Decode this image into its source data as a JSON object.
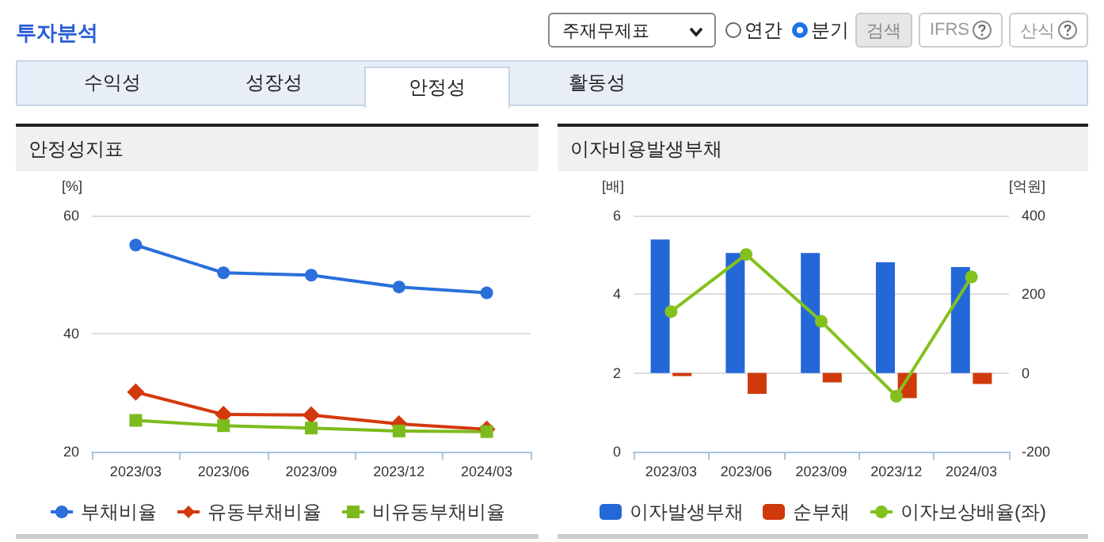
{
  "chart_data": [
    {
      "type": "other",
      "title": "투자분석",
      "annotations": [
        "주재무제표",
        "연간",
        "분기",
        "검색",
        "IFRS",
        "산식",
        "수익성",
        "성장성",
        "안정성",
        "활동성"
      ]
    },
    {
      "type": "line",
      "title": "안정성지표",
      "ylabel": "[%]",
      "categories": [
        "2023/03",
        "2023/06",
        "2023/09",
        "2023/12",
        "2024/03"
      ],
      "series": [
        {
          "name": "부채비율",
          "color": "#2a6fdb",
          "marker": "circle",
          "values": [
            55.0,
            50.3,
            49.9,
            47.9,
            46.9
          ]
        },
        {
          "name": "유동부채비율",
          "color": "#d4380d",
          "marker": "diamond",
          "values": [
            30.1,
            26.3,
            26.2,
            24.7,
            23.8
          ]
        },
        {
          "name": "비유동부채비율",
          "color": "#7cbb1c",
          "marker": "square",
          "values": [
            25.3,
            24.4,
            24.0,
            23.5,
            23.4
          ]
        }
      ],
      "ylim": [
        20,
        60
      ],
      "yticks": [
        20,
        40,
        60
      ],
      "grid": "y",
      "legend": "bottom"
    },
    {
      "type": "bar",
      "title": "이자비용발생부채",
      "ylabel": "[배]",
      "y2label": "[억원]",
      "categories": [
        "2023/03",
        "2023/06",
        "2023/09",
        "2023/12",
        "2024/03"
      ],
      "series": [
        {
          "name": "이자발생부채",
          "color": "#2468d8",
          "axis": "y2",
          "values": [
            339,
            305,
            305,
            281,
            269
          ]
        },
        {
          "name": "순부채",
          "color": "#d03a0a",
          "axis": "y2",
          "values": [
            -8,
            -53,
            -24,
            -64,
            -28
          ]
        },
        {
          "name": "이자보상배율(좌)",
          "type": "line",
          "color": "#84c11e",
          "axis": "y",
          "marker": "circle",
          "values": [
            3.56,
            5.01,
            3.31,
            1.41,
            4.44
          ]
        }
      ],
      "ylim": [
        0,
        6
      ],
      "yticks": [
        0,
        2,
        4,
        6
      ],
      "y2lim": [
        -200,
        400
      ],
      "y2ticks": [
        -200,
        0,
        200,
        400
      ],
      "grid": "y",
      "legend": "bottom"
    }
  ]
}
